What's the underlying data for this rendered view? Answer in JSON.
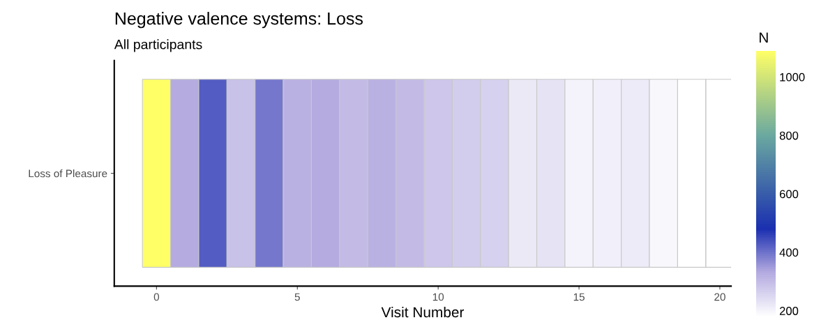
{
  "chart_data": {
    "type": "heatmap",
    "title": "Negative valence systems: Loss",
    "subtitle": "All participants",
    "xlabel": "Visit Number",
    "clabel": "N",
    "categories": [
      "0",
      null,
      null,
      null,
      null,
      "5",
      null,
      null,
      null,
      null,
      "10",
      null,
      null,
      null,
      null,
      "15",
      null,
      null,
      null,
      null,
      "20"
    ],
    "y_categories": [
      "Loss of Pleasure"
    ],
    "cells": [
      [
        1090,
        330,
        425,
        290,
        395,
        320,
        330,
        300,
        320,
        300,
        280,
        270,
        260,
        220,
        230,
        200,
        210,
        215,
        195,
        178,
        null
      ]
    ],
    "clim": [
      178,
      1090
    ],
    "cticks": [
      200,
      400,
      600,
      800,
      1000
    ],
    "grid": false
  }
}
